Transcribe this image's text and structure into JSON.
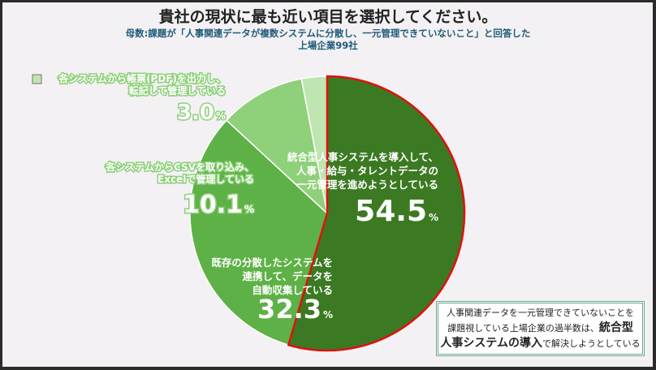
{
  "title": "貴社の現状に最も近い項目を選択してください。",
  "subtitle_line1": "母数:課題が「人事関連データが複数システムに分散し、一元管理できていないこと」と回答した",
  "subtitle_line2": "上場企業99社",
  "chart_data": {
    "type": "pie",
    "title": "貴社の現状に最も近い項目を選択してください。",
    "start": "top",
    "direction": "clockwise",
    "unit": "%",
    "slices": [
      {
        "label_lines": [
          "統合型人事システムを導入して、",
          "人事・給与・タレントデータの",
          "一元管理を進めようとしている"
        ],
        "value": 54.5,
        "value_text": "54.5",
        "color": "#3b7a22",
        "highlight_border": "#e01010"
      },
      {
        "label_lines": [
          "既存の分散したシステムを",
          "連携して、データを",
          "自動収集している"
        ],
        "value": 32.3,
        "value_text": "32.3",
        "color": "#5eb146"
      },
      {
        "label_lines": [
          "各システムからCSVを取り込み、",
          "Excelで管理している"
        ],
        "value": 10.1,
        "value_text": "10.1",
        "color": "#8fd07a"
      },
      {
        "label_lines": [
          "各システムから帳票(PDF)を出力し、",
          "転記して管理している"
        ],
        "value": 3.0,
        "value_text": "3.0",
        "color": "#bfe5b0"
      }
    ]
  },
  "callout": {
    "line1": "人事関連データを一元管理できていないことを",
    "line2_a": "課題視している上場企業の過半数は、",
    "line2_b": "統合型",
    "line3_a": "人事システムの導入",
    "line3_b": "で解決しようとしている"
  }
}
